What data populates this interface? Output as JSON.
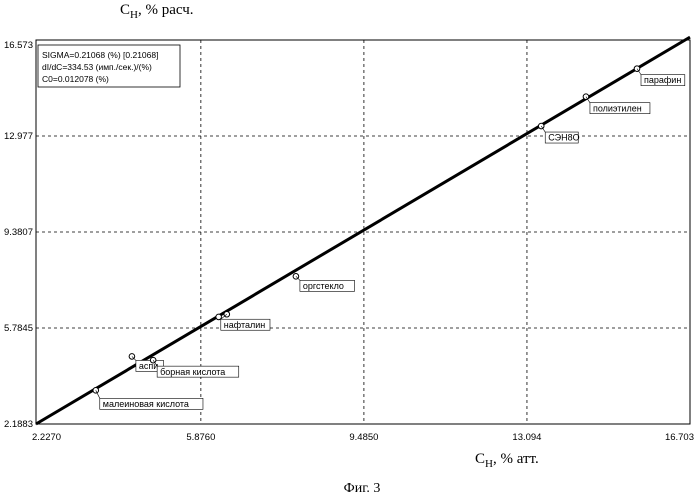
{
  "figure": {
    "ylabel_main": "C",
    "ylabel_sub": "Н",
    "ylabel_rest": ", % расч.",
    "xlabel_main": "C",
    "xlabel_sub": "Н",
    "xlabel_rest": ", % атт.",
    "caption": "Фиг. 3"
  },
  "stats_box": {
    "line1": "SIGMA=0.21068 (%) [0.21068]",
    "line2": "dI/dC=334.53 (имп./сек.)/(%)",
    "line3": "C0=0.012078 (%)"
  },
  "chart_data": {
    "type": "scatter",
    "grid": true,
    "xlim": [
      2.227,
      16.703
    ],
    "ylim": [
      2.1883,
      16.573
    ],
    "x_ticks": [
      2.227,
      5.876,
      9.485,
      13.094,
      16.703
    ],
    "x_tick_labels": [
      "2.2270",
      "5.8760",
      "9.4850",
      "13.094",
      "16.703"
    ],
    "y_ticks": [
      2.1883,
      5.7845,
      9.3807,
      12.977,
      16.573
    ],
    "y_tick_labels": [
      "2.1883",
      "5.7845",
      "9.3807",
      "12.977",
      "16.573"
    ],
    "fit_line": {
      "x": [
        2.227,
        16.703
      ],
      "y": [
        2.1883,
        16.68
      ]
    },
    "points": [
      {
        "x": 3.55,
        "y": 3.45,
        "label": "малеиновая кислота"
      },
      {
        "x": 4.35,
        "y": 4.72,
        "label": "аспи"
      },
      {
        "x": 4.82,
        "y": 4.58,
        "label": "борная кислота"
      },
      {
        "x": 6.27,
        "y": 6.2,
        "label": ""
      },
      {
        "x": 6.45,
        "y": 6.3,
        "label": "нафталин"
      },
      {
        "x": 7.98,
        "y": 7.72,
        "label": "оргстекло"
      },
      {
        "x": 13.41,
        "y": 13.35,
        "label": "СЭН8О"
      },
      {
        "x": 14.4,
        "y": 14.45,
        "label": "полиэтилен"
      },
      {
        "x": 15.53,
        "y": 15.5,
        "label": "парафин"
      }
    ]
  }
}
